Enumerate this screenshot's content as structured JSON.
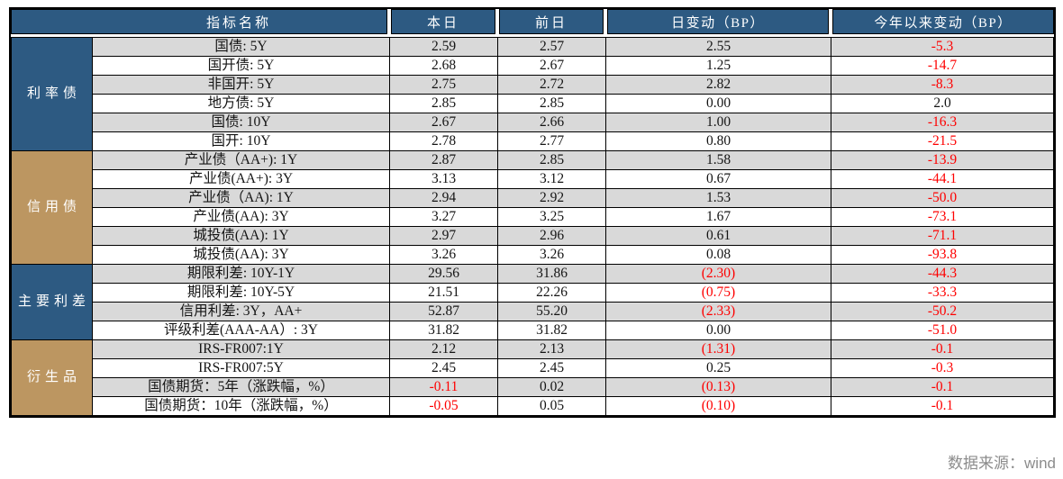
{
  "colors": {
    "accent_blue": "#2d5a82",
    "accent_tan": "#bc9661",
    "negative_red": "#fe0000",
    "stripe_gray": "#d9d9d9",
    "border_black": "#000000",
    "footer_gray": "#8c8c8c"
  },
  "header": {
    "indicator": "指标名称",
    "today": "本日",
    "prev": "前日",
    "day_change": "日变动（BP）",
    "ytd_change": "今年以来变动（BP）"
  },
  "sections": [
    {
      "category": "利率债",
      "tone": "blue",
      "rows": [
        {
          "name": "国债: 5Y",
          "today": "2.59",
          "prev": "2.57",
          "day_change": "2.55",
          "ytd_change": "-5.3"
        },
        {
          "name": "国开债: 5Y",
          "today": "2.68",
          "prev": "2.67",
          "day_change": "1.25",
          "ytd_change": "-14.7"
        },
        {
          "name": "非国开: 5Y",
          "today": "2.75",
          "prev": "2.72",
          "day_change": "2.82",
          "ytd_change": "-8.3"
        },
        {
          "name": "地方债: 5Y",
          "today": "2.85",
          "prev": "2.85",
          "day_change": "0.00",
          "ytd_change": "2.0"
        },
        {
          "name": "国债: 10Y",
          "today": "2.67",
          "prev": "2.66",
          "day_change": "1.00",
          "ytd_change": "-16.3"
        },
        {
          "name": "国开: 10Y",
          "today": "2.78",
          "prev": "2.77",
          "day_change": "0.80",
          "ytd_change": "-21.5"
        }
      ]
    },
    {
      "category": "信用债",
      "tone": "tan",
      "rows": [
        {
          "name": "产业债（AA+): 1Y",
          "today": "2.87",
          "prev": "2.85",
          "day_change": "1.58",
          "ytd_change": "-13.9"
        },
        {
          "name": "产业债(AA+): 3Y",
          "today": "3.13",
          "prev": "3.12",
          "day_change": "0.67",
          "ytd_change": "-44.1"
        },
        {
          "name": "产业债（AA): 1Y",
          "today": "2.94",
          "prev": "2.92",
          "day_change": "1.53",
          "ytd_change": "-50.0"
        },
        {
          "name": "产业债(AA): 3Y",
          "today": "3.27",
          "prev": "3.25",
          "day_change": "1.67",
          "ytd_change": "-73.1"
        },
        {
          "name": "城投债(AA): 1Y",
          "today": "2.97",
          "prev": "2.96",
          "day_change": "0.61",
          "ytd_change": "-71.1"
        },
        {
          "name": "城投债(AA): 3Y",
          "today": "3.26",
          "prev": "3.26",
          "day_change": "0.08",
          "ytd_change": "-93.8"
        }
      ]
    },
    {
      "category": "主要利差",
      "tone": "blue",
      "rows": [
        {
          "name": "期限利差: 10Y-1Y",
          "today": "29.56",
          "prev": "31.86",
          "day_change": "(2.30)",
          "ytd_change": "-44.3"
        },
        {
          "name": "期限利差: 10Y-5Y",
          "today": "21.51",
          "prev": "22.26",
          "day_change": "(0.75)",
          "ytd_change": "-33.3"
        },
        {
          "name": "信用利差: 3Y，AA+",
          "today": "52.87",
          "prev": "55.20",
          "day_change": "(2.33)",
          "ytd_change": "-50.2"
        },
        {
          "name": "评级利差(AAA-AA）: 3Y",
          "today": "31.82",
          "prev": "31.82",
          "day_change": "0.00",
          "ytd_change": "-51.0"
        }
      ]
    },
    {
      "category": "衍生品",
      "tone": "tan",
      "rows": [
        {
          "name": "IRS-FR007:1Y",
          "today": "2.12",
          "prev": "2.13",
          "day_change": "(1.31)",
          "ytd_change": "-0.1"
        },
        {
          "name": "IRS-FR007:5Y",
          "today": "2.45",
          "prev": "2.45",
          "day_change": "0.25",
          "ytd_change": "-0.3"
        },
        {
          "name": "国债期货：5年（涨跌幅，%）",
          "today": "-0.11",
          "prev": "0.02",
          "day_change": "(0.13)",
          "ytd_change": "-0.1"
        },
        {
          "name": "国债期货：10年（涨跌幅，%）",
          "today": "-0.05",
          "prev": "0.05",
          "day_change": "(0.10)",
          "ytd_change": "-0.1"
        }
      ]
    }
  ],
  "footer": {
    "source": "数据来源：wind"
  }
}
